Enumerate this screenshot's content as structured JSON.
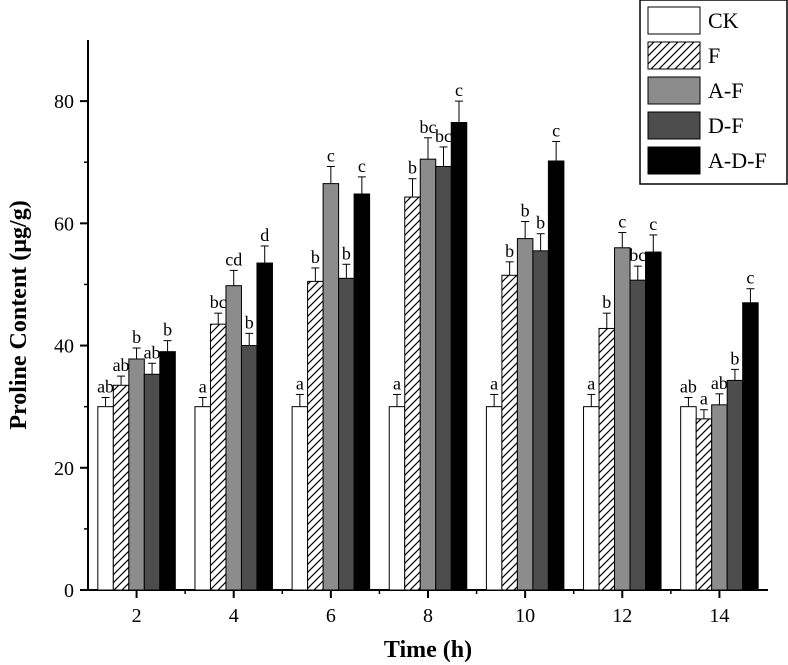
{
  "chart_data": {
    "type": "bar",
    "xlabel": "Time (h)",
    "ylabel": "Proline Content (µg/g)",
    "categories": [
      "2",
      "4",
      "6",
      "8",
      "10",
      "12",
      "14"
    ],
    "ylim": [
      0,
      90
    ],
    "yticks": [
      0,
      20,
      40,
      60,
      80
    ],
    "grid": false,
    "legend_position": "top-right",
    "series": [
      {
        "name": "CK",
        "fill": "#ffffff",
        "pattern": "none",
        "values": [
          30,
          30,
          30,
          30,
          30,
          30,
          30
        ],
        "errors": [
          1.5,
          1.5,
          2,
          2,
          2,
          2,
          1.5
        ],
        "labels": [
          "ab",
          "a",
          "a",
          "a",
          "a",
          "a",
          "ab"
        ]
      },
      {
        "name": "F",
        "fill": "#ffffff",
        "pattern": "hatch",
        "values": [
          33.5,
          43.5,
          50.5,
          64.3,
          51.5,
          42.8,
          28
        ],
        "errors": [
          1.5,
          1.8,
          2.2,
          3,
          2.2,
          2.5,
          1.5
        ],
        "labels": [
          "ab",
          "bc",
          "b",
          "b",
          "b",
          "b",
          "a"
        ]
      },
      {
        "name": "A-F",
        "fill": "#8c8c8c",
        "pattern": "none",
        "values": [
          37.8,
          49.8,
          66.5,
          70.5,
          57.5,
          56,
          30.3
        ],
        "errors": [
          1.8,
          2.5,
          2.8,
          3.5,
          2.8,
          2.5,
          1.8
        ],
        "labels": [
          "b",
          "cd",
          "c",
          "bc",
          "b",
          "c",
          "ab"
        ]
      },
      {
        "name": "D-F",
        "fill": "#4d4d4d",
        "pattern": "none",
        "values": [
          35.3,
          40,
          51,
          69.3,
          55.5,
          50.7,
          34.3
        ],
        "errors": [
          1.8,
          2,
          2.3,
          3.2,
          2.8,
          2.3,
          1.8
        ],
        "labels": [
          "ab",
          "b",
          "b",
          "bc",
          "b",
          "bc",
          "b"
        ]
      },
      {
        "name": "A-D-F",
        "fill": "#000000",
        "pattern": "none",
        "values": [
          39,
          53.5,
          64.8,
          76.5,
          70.2,
          55.3,
          47
        ],
        "errors": [
          1.8,
          2.8,
          2.8,
          3.5,
          3.2,
          2.8,
          2.3
        ],
        "labels": [
          "b",
          "d",
          "c",
          "c",
          "c",
          "c",
          "c"
        ]
      }
    ]
  }
}
